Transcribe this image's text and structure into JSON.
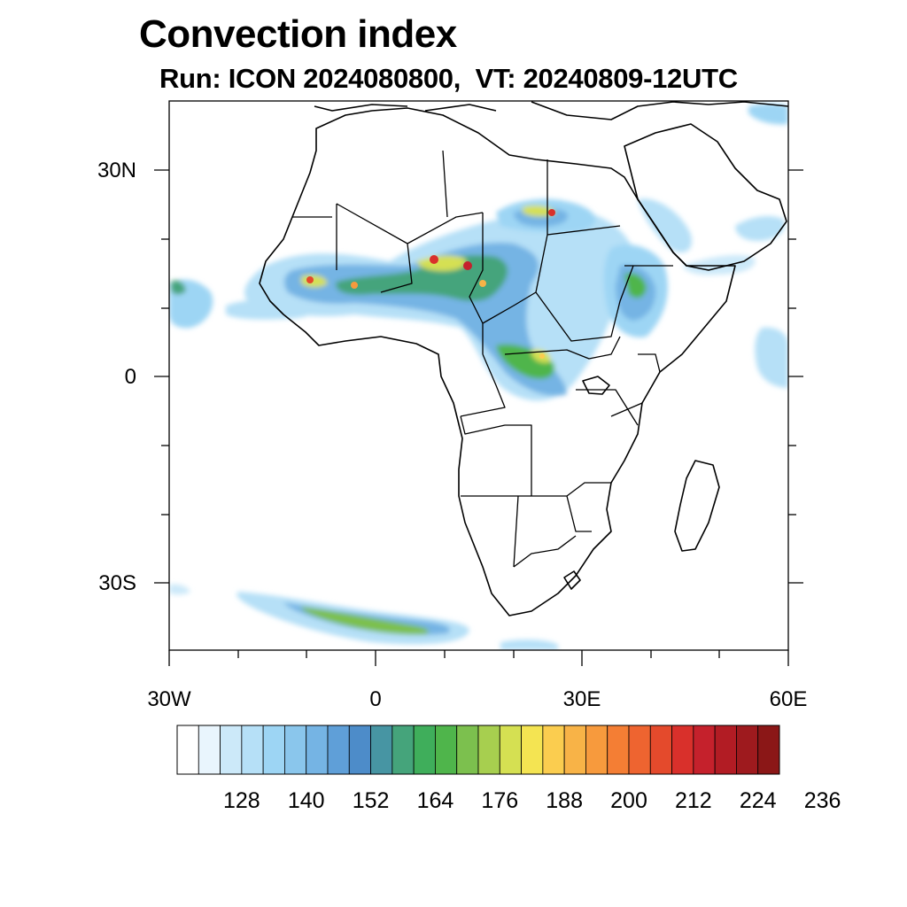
{
  "title": "Convection index",
  "subtitle": "Run: ICON 2024080800,  VT: 20240809-12UTC",
  "map": {
    "region": "Africa",
    "projection": "cylindrical equidistant",
    "lon_range": [
      -30,
      60
    ],
    "lat_range": [
      -40,
      40
    ],
    "y_ticks": [
      {
        "lat": 30,
        "label": "30N"
      },
      {
        "lat": 0,
        "label": "0"
      },
      {
        "lat": -30,
        "label": "30S"
      }
    ],
    "x_ticks": [
      {
        "lon": -30,
        "label": "30W"
      },
      {
        "lon": 0,
        "label": "0"
      },
      {
        "lon": 30,
        "label": "30E"
      },
      {
        "lon": 60,
        "label": "60E"
      }
    ]
  },
  "colorbar": {
    "colors": [
      "#ffffff",
      "#e9f5fd",
      "#cce9f9",
      "#b6e0f7",
      "#9dd5f4",
      "#8ac6ec",
      "#75b4e4",
      "#5f9fd8",
      "#4d8cc9",
      "#4795a3",
      "#45a47b",
      "#3fae5b",
      "#4fb54b",
      "#7cc04e",
      "#a7cf4f",
      "#d5e052",
      "#f4e452",
      "#fbcd4f",
      "#f8b347",
      "#f79a3d",
      "#f47e34",
      "#ee6430",
      "#e44a2c",
      "#d9302b",
      "#c5212c",
      "#b21c24",
      "#9e1a1e",
      "#8b1717"
    ],
    "labels": [
      "128",
      "140",
      "152",
      "164",
      "176",
      "188",
      "200",
      "212",
      "224",
      "236"
    ]
  }
}
